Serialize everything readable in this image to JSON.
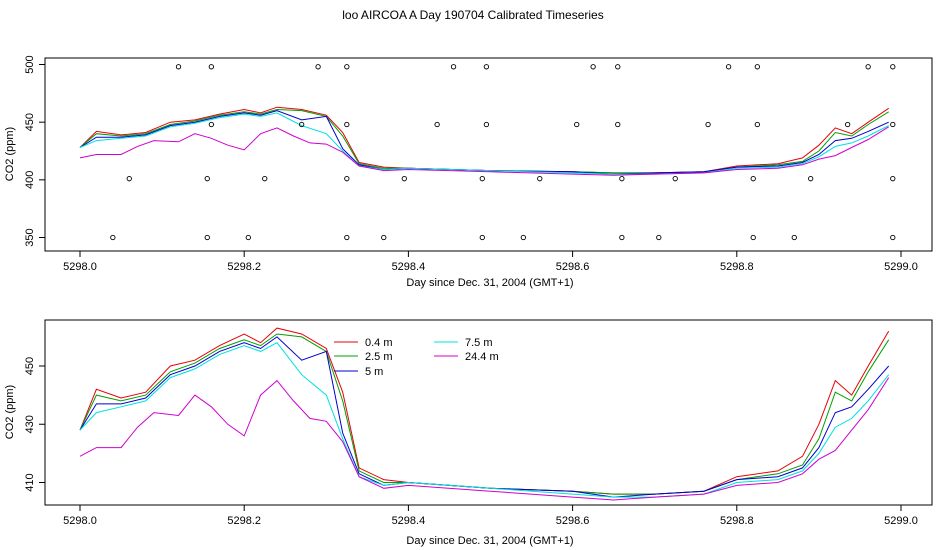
{
  "figure_title": "loo AIRCOA A  Day 190704  Calibrated Timeseries",
  "chart_data": [
    {
      "type": "line",
      "title": "",
      "xlabel": "Day since Dec. 31, 2004 (GMT+1)",
      "ylabel": "CO2 (ppm)",
      "xlim": [
        5298.0,
        5299.0
      ],
      "ylim": [
        350,
        500
      ],
      "x_ticks": [
        5298.0,
        5298.2,
        5298.4,
        5298.6,
        5298.8,
        5299.0
      ],
      "x_tick_labels": [
        "5298.0",
        "5298.2",
        "5298.4",
        "5298.6",
        "5298.8",
        "5299.0"
      ],
      "y_ticks": [
        350,
        400,
        450,
        500
      ],
      "y_tick_labels": [
        "350",
        "400",
        "450",
        "500"
      ],
      "grid": false,
      "colors": {
        "0.4 m": "#e8000b",
        "2.5 m": "#00a000",
        "5 m": "#0000d0",
        "7.5 m": "#00e0e0",
        "24.4 m": "#d000d0"
      },
      "series": [
        {
          "color": "#e8000b",
          "x": [
            5298.0,
            5298.02,
            5298.05,
            5298.08,
            5298.11,
            5298.14,
            5298.17,
            5298.2,
            5298.22,
            5298.24,
            5298.27,
            5298.3,
            5298.32,
            5298.34,
            5298.37,
            5298.4,
            5298.5,
            5298.6,
            5298.65,
            5298.7,
            5298.76,
            5298.8,
            5298.85,
            5298.88,
            5298.9,
            5298.92,
            5298.94,
            5298.96,
            5298.985
          ],
          "y": [
            428,
            442,
            439,
            441,
            450,
            452,
            457,
            461,
            458,
            463,
            461,
            456,
            441,
            415,
            411,
            410,
            408,
            407,
            406,
            406,
            407,
            412,
            414,
            419,
            430,
            445,
            440,
            450,
            462
          ]
        },
        {
          "color": "#00a000",
          "x": [
            5298.0,
            5298.02,
            5298.05,
            5298.08,
            5298.11,
            5298.14,
            5298.17,
            5298.2,
            5298.22,
            5298.24,
            5298.27,
            5298.3,
            5298.32,
            5298.34,
            5298.37,
            5298.4,
            5298.5,
            5298.6,
            5298.65,
            5298.7,
            5298.76,
            5298.8,
            5298.85,
            5298.88,
            5298.9,
            5298.92,
            5298.94,
            5298.96,
            5298.985
          ],
          "y": [
            428,
            440,
            438,
            440,
            448,
            451,
            456,
            459,
            457,
            461,
            460,
            455,
            438,
            414,
            410,
            410,
            408,
            407,
            406,
            406,
            407,
            411,
            413,
            416,
            425,
            441,
            438,
            448,
            459
          ]
        },
        {
          "color": "#0000d0",
          "x": [
            5298.0,
            5298.02,
            5298.05,
            5298.08,
            5298.11,
            5298.14,
            5298.17,
            5298.2,
            5298.22,
            5298.24,
            5298.27,
            5298.3,
            5298.32,
            5298.34,
            5298.37,
            5298.4,
            5298.5,
            5298.6,
            5298.65,
            5298.7,
            5298.76,
            5298.8,
            5298.85,
            5298.88,
            5298.9,
            5298.92,
            5298.94,
            5298.96,
            5298.985
          ],
          "y": [
            428,
            437,
            437,
            439,
            447,
            450,
            455,
            458,
            456,
            460,
            452,
            455,
            427,
            413,
            409,
            410,
            408,
            407,
            405,
            406,
            407,
            411,
            412,
            415,
            422,
            434,
            436,
            442,
            450
          ]
        },
        {
          "color": "#00e0e0",
          "x": [
            5298.0,
            5298.02,
            5298.05,
            5298.08,
            5298.11,
            5298.14,
            5298.17,
            5298.2,
            5298.22,
            5298.24,
            5298.27,
            5298.3,
            5298.32,
            5298.34,
            5298.37,
            5298.4,
            5298.5,
            5298.6,
            5298.65,
            5298.7,
            5298.76,
            5298.8,
            5298.85,
            5298.88,
            5298.9,
            5298.92,
            5298.94,
            5298.96,
            5298.985
          ],
          "y": [
            428,
            434,
            436,
            438,
            446,
            449,
            454,
            457,
            455,
            458,
            447,
            440,
            425,
            412,
            409,
            410,
            408,
            406,
            405,
            405,
            406,
            410,
            411,
            414,
            420,
            429,
            432,
            438,
            447
          ]
        },
        {
          "color": "#d000d0",
          "x": [
            5298.0,
            5298.02,
            5298.05,
            5298.07,
            5298.09,
            5298.12,
            5298.14,
            5298.16,
            5298.18,
            5298.2,
            5298.22,
            5298.24,
            5298.26,
            5298.28,
            5298.3,
            5298.32,
            5298.34,
            5298.37,
            5298.4,
            5298.5,
            5298.6,
            5298.65,
            5298.7,
            5298.76,
            5298.8,
            5298.85,
            5298.88,
            5298.9,
            5298.92,
            5298.94,
            5298.96,
            5298.985
          ],
          "y": [
            419,
            422,
            422,
            429,
            434,
            433,
            440,
            436,
            430,
            426,
            440,
            445,
            438,
            432,
            431,
            424,
            412,
            408,
            409,
            407,
            405,
            404,
            405,
            406,
            409,
            410,
            413,
            418,
            421,
            428,
            435,
            446
          ]
        }
      ],
      "scatter_points": {
        "y350": [
          5298.04,
          5298.155,
          5298.205,
          5298.325,
          5298.37,
          5298.49,
          5298.54,
          5298.66,
          5298.705,
          5298.82,
          5298.87,
          5298.99
        ],
        "y401": [
          5298.06,
          5298.155,
          5298.225,
          5298.325,
          5298.395,
          5298.49,
          5298.56,
          5298.66,
          5298.725,
          5298.82,
          5298.89,
          5298.99
        ],
        "y448": [
          5298.16,
          5298.27,
          5298.325,
          5298.435,
          5298.495,
          5298.605,
          5298.655,
          5298.765,
          5298.825,
          5298.935,
          5298.99
        ],
        "y498": [
          5298.12,
          5298.16,
          5298.29,
          5298.325,
          5298.455,
          5298.495,
          5298.625,
          5298.655,
          5298.79,
          5298.825,
          5298.96,
          5298.99
        ]
      }
    },
    {
      "type": "line",
      "title": "",
      "xlabel": "Day since Dec. 31, 2004 (GMT+1)",
      "ylabel": "CO2 (ppm)",
      "xlim": [
        5298.0,
        5299.0
      ],
      "ylim": [
        403,
        464
      ],
      "x_ticks": [
        5298.0,
        5298.2,
        5298.4,
        5298.6,
        5298.8,
        5299.0
      ],
      "x_tick_labels": [
        "5298.0",
        "5298.2",
        "5298.4",
        "5298.6",
        "5298.8",
        "5299.0"
      ],
      "y_ticks": [
        410,
        430,
        450
      ],
      "y_tick_labels": [
        "410",
        "430",
        "450"
      ],
      "grid": false,
      "legend": {
        "placement": "top-center",
        "entries": [
          {
            "name": "0.4 m",
            "color": "#e8000b"
          },
          {
            "name": "2.5 m",
            "color": "#00a000"
          },
          {
            "name": "5 m",
            "color": "#0000d0"
          },
          {
            "name": "7.5 m",
            "color": "#00e0e0"
          },
          {
            "name": "24.4 m",
            "color": "#d000d0"
          }
        ]
      },
      "series_ref": "same series as upper panel"
    }
  ]
}
